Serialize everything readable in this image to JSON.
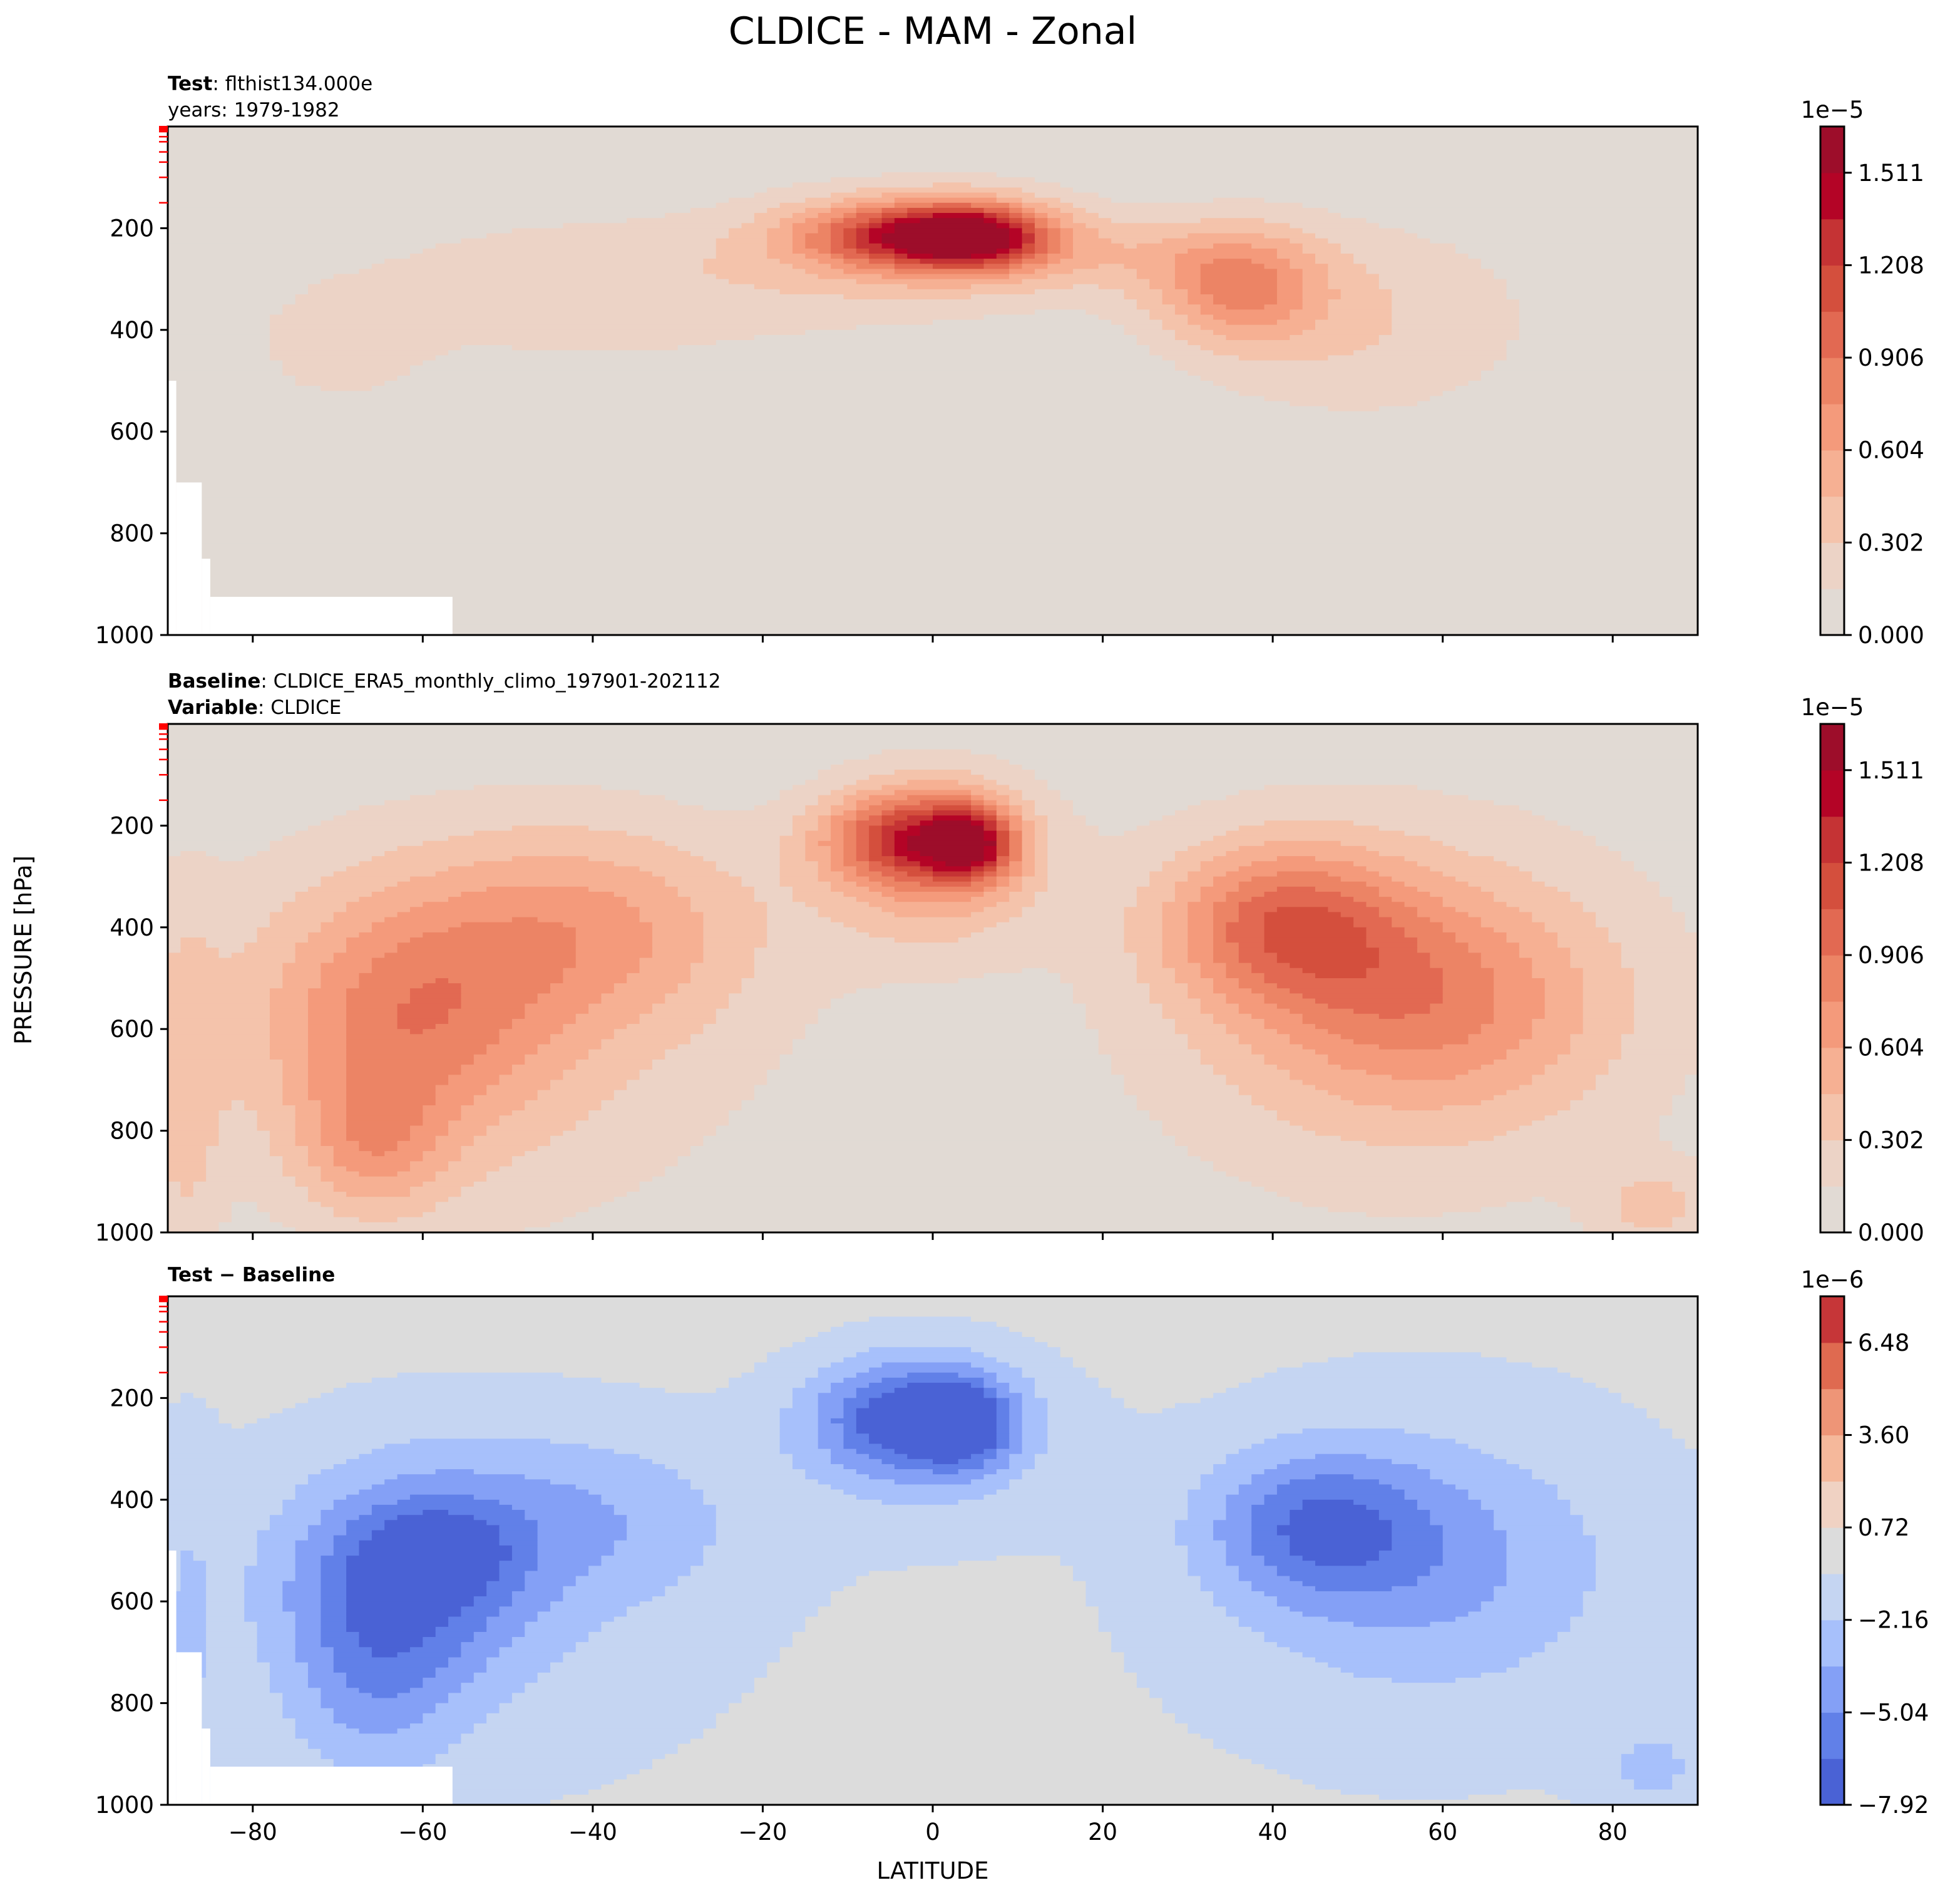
{
  "figure": {
    "title": "CLDICE - MAM - Zonal",
    "ylabel": "PRESSURE [hPa]",
    "xlabel": "LATITUDE"
  },
  "chart_data": [
    {
      "type": "heatmap",
      "subplot": "test",
      "header": [
        {
          "bold": "Test",
          "sep": ": ",
          "text": "flthist134.000e"
        },
        {
          "bold": "",
          "sep": "",
          "text": "years: 1979-1982"
        }
      ],
      "xlim": [
        -90,
        90
      ],
      "ylim": [
        1000,
        0
      ],
      "xticks": [
        -80,
        -60,
        -40,
        -20,
        0,
        20,
        40,
        60,
        80
      ],
      "yticks": [
        200,
        400,
        600,
        800,
        1000
      ],
      "show_xtick_labels": false,
      "colorbar": {
        "multiplier": "1e−5",
        "levels": [
          0.0,
          0.151,
          0.302,
          0.453,
          0.604,
          0.755,
          0.906,
          1.057,
          1.208,
          1.359,
          1.511,
          1.662
        ],
        "labeled_ticks": [
          "0.000",
          "0.302",
          "0.604",
          "0.906",
          "1.208",
          "1.511"
        ],
        "colors": [
          "#e1dad4",
          "#ecd3c6",
          "#f4c3ab",
          "#f6b093",
          "#f49a7b",
          "#ec8465",
          "#e26952",
          "#d44f3d",
          "#c53334",
          "#b40426",
          "#9d0d2a"
        ]
      },
      "features": [
        {
          "lat": -3,
          "p": 215,
          "sx": 9,
          "sp": 45,
          "v": 0.95
        },
        {
          "lat": 5,
          "p": 215,
          "sx": 6,
          "sp": 45,
          "v": 0.9
        },
        {
          "lat": 0,
          "p": 235,
          "sx": 15,
          "sp": 90,
          "v": 0.4
        },
        {
          "lat": -40,
          "p": 320,
          "sx": 22,
          "sp": 110,
          "v": 0.28
        },
        {
          "lat": -70,
          "p": 440,
          "sx": 7,
          "sp": 80,
          "v": 0.22
        },
        {
          "lat": 36,
          "p": 310,
          "sx": 7,
          "sp": 80,
          "v": 0.65
        },
        {
          "lat": 50,
          "p": 380,
          "sx": 16,
          "sp": 150,
          "v": 0.3
        },
        {
          "lat": 20,
          "p": 250,
          "sx": 10,
          "sp": 50,
          "v": 0.2
        }
      ],
      "cutouts": [
        {
          "lat": [
            -90,
            -89
          ],
          "p": [
            500,
            1000
          ]
        },
        {
          "lat": [
            -89,
            -86
          ],
          "p": [
            700,
            1000
          ]
        },
        {
          "lat": [
            -86,
            -85
          ],
          "p": [
            850,
            1000
          ]
        },
        {
          "lat": [
            -85,
            -56.5
          ],
          "p": [
            925,
            1000
          ]
        }
      ]
    },
    {
      "type": "heatmap",
      "subplot": "baseline",
      "header": [
        {
          "bold": "Baseline",
          "sep": ": ",
          "text": "CLDICE_ERA5_monthly_climo_197901-202112"
        },
        {
          "bold": "Variable",
          "sep": ": ",
          "text": "CLDICE"
        }
      ],
      "xlim": [
        -90,
        90
      ],
      "ylim": [
        1000,
        0
      ],
      "xticks": [
        -80,
        -60,
        -40,
        -20,
        0,
        20,
        40,
        60,
        80
      ],
      "yticks": [
        200,
        400,
        600,
        800,
        1000
      ],
      "show_xtick_labels": false,
      "colorbar": {
        "multiplier": "1e−5",
        "levels": [
          0.0,
          0.151,
          0.302,
          0.453,
          0.604,
          0.755,
          0.906,
          1.057,
          1.208,
          1.359,
          1.511,
          1.662
        ],
        "labeled_ticks": [
          "0.000",
          "0.302",
          "0.604",
          "0.906",
          "1.208",
          "1.511"
        ],
        "colors": [
          "#e1dad4",
          "#ecd3c6",
          "#f4c3ab",
          "#f6b093",
          "#f49a7b",
          "#ec8465",
          "#e26952",
          "#d44f3d",
          "#c53334",
          "#b40426",
          "#9d0d2a"
        ]
      },
      "features": [
        {
          "lat": -3,
          "p": 225,
          "sx": 7,
          "sp": 60,
          "v": 0.8
        },
        {
          "lat": 4.5,
          "p": 235,
          "sx": 3.5,
          "sp": 50,
          "v": 0.9
        },
        {
          "lat": 0,
          "p": 260,
          "sx": 9,
          "sp": 120,
          "v": 0.6
        },
        {
          "lat": -62,
          "p": 580,
          "sx": 12,
          "sp": 170,
          "v": 0.55
        },
        {
          "lat": -40,
          "p": 400,
          "sx": 14,
          "sp": 140,
          "v": 0.45
        },
        {
          "lat": -66,
          "p": 830,
          "sx": 6,
          "sp": 100,
          "v": 0.4
        },
        {
          "lat": -55,
          "p": 600,
          "sx": 28,
          "sp": 320,
          "v": 0.3
        },
        {
          "lat": 41,
          "p": 390,
          "sx": 10,
          "sp": 110,
          "v": 0.72
        },
        {
          "lat": 58,
          "p": 540,
          "sx": 14,
          "sp": 150,
          "v": 0.55
        },
        {
          "lat": 55,
          "p": 560,
          "sx": 26,
          "sp": 320,
          "v": 0.32
        },
        {
          "lat": 85,
          "p": 950,
          "sx": 5,
          "sp": 60,
          "v": 0.3
        },
        {
          "lat": -88,
          "p": 750,
          "sx": 3,
          "sp": 300,
          "v": 0.25
        }
      ],
      "cutouts": []
    },
    {
      "type": "heatmap",
      "subplot": "difference",
      "header": [
        {
          "bold": "Test − Baseline",
          "sep": "",
          "text": ""
        }
      ],
      "xlim": [
        -90,
        90
      ],
      "ylim": [
        1000,
        0
      ],
      "xticks": [
        -80,
        -60,
        -40,
        -20,
        0,
        20,
        40,
        60,
        80
      ],
      "yticks": [
        200,
        400,
        600,
        800,
        1000
      ],
      "show_xtick_labels": true,
      "colorbar": {
        "multiplier": "1e−6",
        "levels": [
          -7.92,
          -6.48,
          -5.04,
          -3.6,
          -2.16,
          -0.72,
          0.72,
          2.16,
          3.6,
          5.04,
          6.48,
          7.92
        ],
        "labeled_ticks": [
          "−7.92",
          "−5.04",
          "−2.16",
          "0.72",
          "3.60",
          "6.48"
        ],
        "colors": [
          "#4a62d5",
          "#6180e8",
          "#84a0f6",
          "#a7c0fb",
          "#c5d5f2",
          "#dcdcdc",
          "#f0d2c3",
          "#f5b89b",
          "#ee9577",
          "#df6a50",
          "#c63638"
        ]
      },
      "features": [
        {
          "lat": -3,
          "p": 240,
          "sx": 8,
          "sp": 80,
          "v": -6.0
        },
        {
          "lat": 4,
          "p": 250,
          "sx": 4,
          "sp": 60,
          "v": -4.0
        },
        {
          "lat": 0,
          "p": 270,
          "sx": 11,
          "sp": 130,
          "v": -2.0
        },
        {
          "lat": -62,
          "p": 560,
          "sx": 10,
          "sp": 140,
          "v": -5.2
        },
        {
          "lat": -58,
          "p": 500,
          "sx": 5,
          "sp": 50,
          "v": -2.5
        },
        {
          "lat": -42,
          "p": 440,
          "sx": 14,
          "sp": 120,
          "v": -2.5
        },
        {
          "lat": -66,
          "p": 780,
          "sx": 7,
          "sp": 140,
          "v": -2.5
        },
        {
          "lat": -55,
          "p": 600,
          "sx": 28,
          "sp": 320,
          "v": -1.6
        },
        {
          "lat": 45,
          "p": 450,
          "sx": 9,
          "sp": 100,
          "v": -4.5
        },
        {
          "lat": 58,
          "p": 520,
          "sx": 14,
          "sp": 160,
          "v": -2.5
        },
        {
          "lat": 58,
          "p": 560,
          "sx": 28,
          "sp": 330,
          "v": -1.6
        },
        {
          "lat": 85,
          "p": 930,
          "sx": 5,
          "sp": 70,
          "v": -2.0
        },
        {
          "lat": -88,
          "p": 700,
          "sx": 3,
          "sp": 300,
          "v": -1.5
        }
      ],
      "cutouts": [
        {
          "lat": [
            -90,
            -89
          ],
          "p": [
            500,
            1000
          ]
        },
        {
          "lat": [
            -89,
            -86
          ],
          "p": [
            700,
            1000
          ]
        },
        {
          "lat": [
            -86,
            -85
          ],
          "p": [
            850,
            1000
          ]
        },
        {
          "lat": [
            -85,
            -56.5
          ],
          "p": [
            925,
            1000
          ]
        }
      ]
    }
  ]
}
